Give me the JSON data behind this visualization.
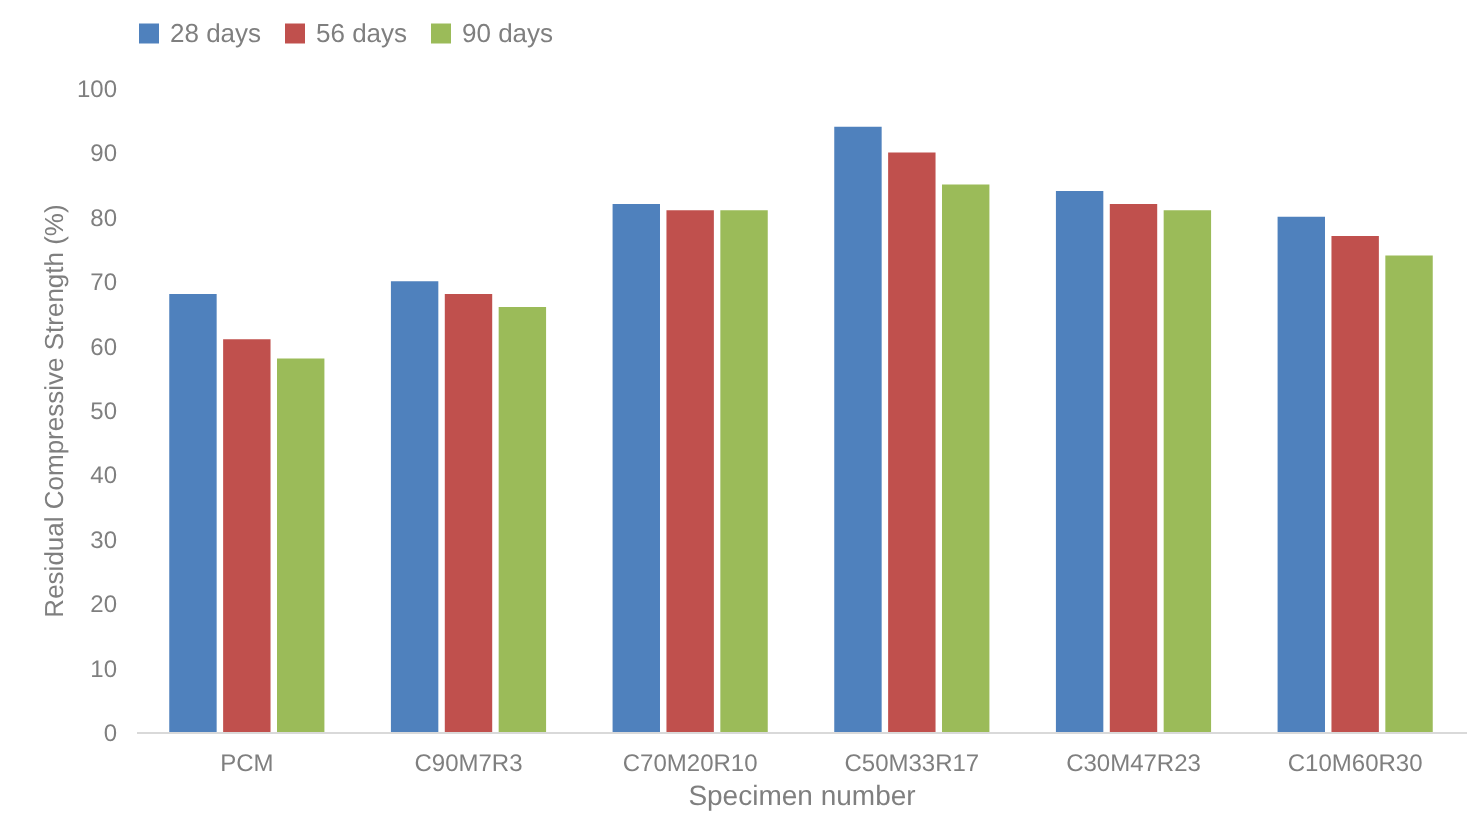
{
  "chart_data": {
    "type": "bar",
    "xlabel": "Specimen number",
    "ylabel": "Residual Compressive Strength (%)",
    "categories": [
      "PCM",
      "C90M7R3",
      "C70M20R10",
      "C50M33R17",
      "C30M47R23",
      "C10M60R30"
    ],
    "series": [
      {
        "name": "28 days",
        "color": "#4f81bd",
        "values": [
          68,
          70,
          82,
          94,
          84,
          80
        ]
      },
      {
        "name": "56 days",
        "color": "#c0504d",
        "values": [
          61,
          68,
          81,
          90,
          82,
          77
        ]
      },
      {
        "name": "90 days",
        "color": "#9bbb59",
        "values": [
          58,
          66,
          81,
          85,
          81,
          74
        ]
      }
    ],
    "ylim": [
      0,
      100
    ],
    "yticks": [
      0,
      10,
      20,
      30,
      40,
      50,
      60,
      70,
      80,
      90,
      100
    ],
    "grid": false,
    "legend": "top"
  }
}
